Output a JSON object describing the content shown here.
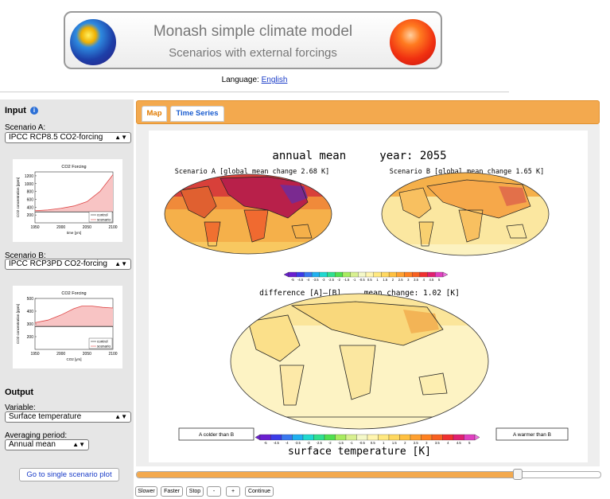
{
  "banner": {
    "title": "Monash simple climate model",
    "subtitle": "Scenarios with external forcings"
  },
  "language": {
    "label": "Language:",
    "value": "English"
  },
  "input": {
    "heading": "Input",
    "scenario_a_label": "Scenario A:",
    "scenario_a_value": "IPCC RCP8.5 CO2-forcing",
    "scenario_b_label": "Scenario B:",
    "scenario_b_value": "IPCC RCP3PD CO2-forcing"
  },
  "output": {
    "heading": "Output",
    "variable_label": "Variable:",
    "variable_value": "Surface temperature",
    "averaging_label": "Averaging period:",
    "averaging_value": "Annual mean",
    "single_plot_button": "Go to single scenario plot"
  },
  "tabs": [
    {
      "label": "Map"
    },
    {
      "label": "Time Series"
    }
  ],
  "map": {
    "header": "annual mean     year: 2055",
    "scenario_a_title": "Scenario A [global mean change 2.68 K]",
    "scenario_b_title": "Scenario B [global mean change 1.65 K]",
    "difference_title": "difference [A]–[B]     mean change: 1.02 [K]",
    "colder_label": "A colder than B",
    "warmer_label": "A warmer than B",
    "bottom_label": "surface temperature [K]",
    "colorbar_ticks": [
      "-5",
      "-4.5",
      "-4",
      "-3.5",
      "-3",
      "-2.5",
      "-2",
      "-1.5",
      "-1",
      "-0.5",
      "0.5",
      "1",
      "1.5",
      "2",
      "2.5",
      "3",
      "3.5",
      "4",
      "4.5",
      "5"
    ]
  },
  "slider": {
    "progress": 0.82
  },
  "controls": {
    "slower": "Slower",
    "faster": "Faster",
    "stop": "Stop",
    "minus": "-",
    "plus": "+",
    "continue": "Continue"
  },
  "chart_data": [
    {
      "type": "line",
      "title": "CO2 Forcing",
      "xlabel": "time [yrs]",
      "ylabel": "CO2 concentration [ppm]",
      "x_ticks": [
        "1950",
        "2000",
        "2050",
        "2100"
      ],
      "y_ticks": [
        "200",
        "400",
        "600",
        "800",
        "1000",
        "1200"
      ],
      "xlim": [
        1950,
        2100
      ],
      "ylim": [
        0,
        1300
      ],
      "legend": [
        "control",
        "scenario"
      ],
      "series": [
        {
          "name": "control",
          "x": [
            1950,
            2100
          ],
          "y": [
            280,
            280
          ]
        },
        {
          "name": "scenario",
          "x": [
            1950,
            1975,
            2000,
            2025,
            2050,
            2075,
            2100
          ],
          "y": [
            310,
            330,
            370,
            430,
            540,
            800,
            1230
          ]
        }
      ]
    },
    {
      "type": "line",
      "title": "CO2 Forcing",
      "xlabel": "CO2 [yrs]",
      "ylabel": "CO2 concentration [ppm]",
      "x_ticks": [
        "1950",
        "2000",
        "2050",
        "2100"
      ],
      "y_ticks": [
        "200",
        "300",
        "400",
        "500"
      ],
      "xlim": [
        1950,
        2100
      ],
      "ylim": [
        100,
        500
      ],
      "legend": [
        "control",
        "scenario"
      ],
      "series": [
        {
          "name": "control",
          "x": [
            1950,
            2100
          ],
          "y": [
            280,
            280
          ]
        },
        {
          "name": "scenario",
          "x": [
            1950,
            1975,
            2000,
            2025,
            2040,
            2060,
            2080,
            2100
          ],
          "y": [
            310,
            330,
            370,
            420,
            440,
            440,
            430,
            425
          ]
        }
      ]
    }
  ]
}
